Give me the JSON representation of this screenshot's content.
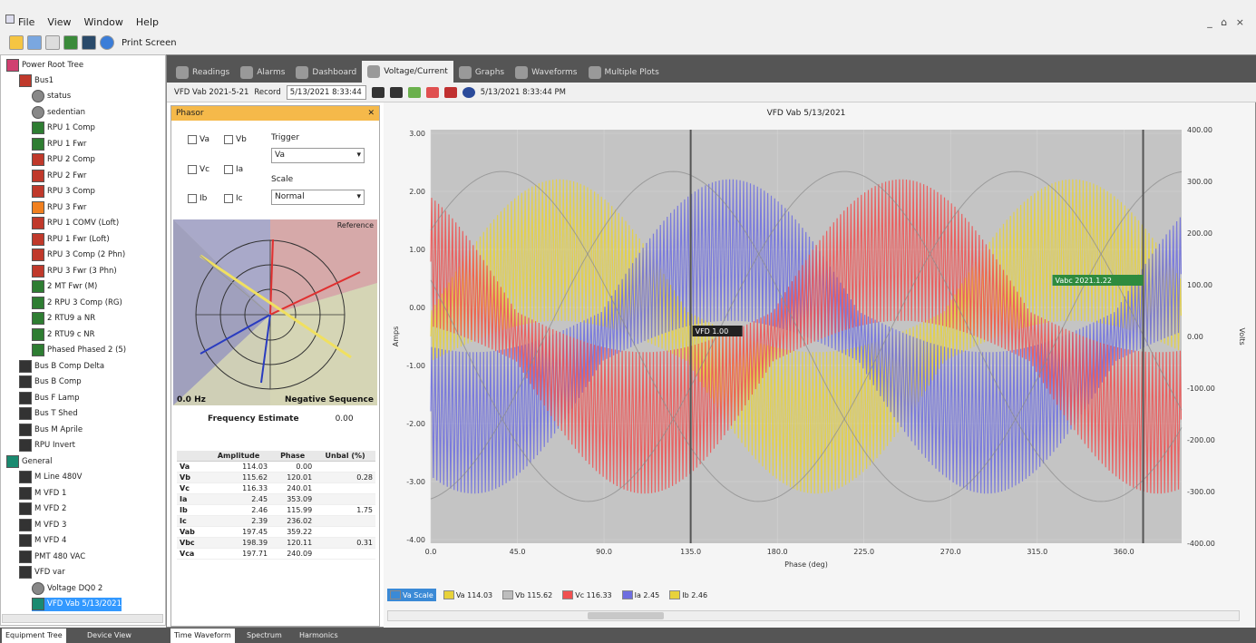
{
  "menu": [
    "File",
    "View",
    "Window",
    "Help"
  ],
  "window_controls": "_ ⌂ ×",
  "toolbar": {
    "print_label": "Print Screen"
  },
  "tree": {
    "root": "Power Root Tree",
    "items": [
      {
        "label": "Bus1",
        "icon": "red",
        "depth": 1
      },
      {
        "label": "status",
        "icon": "gray",
        "depth": 2
      },
      {
        "label": "sedentian",
        "icon": "gray",
        "depth": 2
      },
      {
        "label": "RPU 1 Comp",
        "icon": "green",
        "depth": 2
      },
      {
        "label": "RPU 1 Fwr",
        "icon": "green",
        "depth": 2
      },
      {
        "label": "RPU 2 Comp",
        "icon": "red",
        "depth": 2
      },
      {
        "label": "RPU 2 Fwr",
        "icon": "red",
        "depth": 2
      },
      {
        "label": "RPU 3 Comp",
        "icon": "red",
        "depth": 2
      },
      {
        "label": "RPU 3 Fwr",
        "icon": "orange",
        "depth": 2
      },
      {
        "label": "RPU 1 COMV (Loft)",
        "icon": "red",
        "depth": 2
      },
      {
        "label": "RPU 1 Fwr (Loft)",
        "icon": "red",
        "depth": 2
      },
      {
        "label": "RPU 3 Comp (2 Phn)",
        "icon": "red",
        "depth": 2
      },
      {
        "label": "RPU 3 Fwr (3 Phn)",
        "icon": "red",
        "depth": 2
      },
      {
        "label": "2 MT Fwr (M)",
        "icon": "green",
        "depth": 2
      },
      {
        "label": "2 RPU 3 Comp (RG)",
        "icon": "green",
        "depth": 2
      },
      {
        "label": "2 RTU9 a NR",
        "icon": "green",
        "depth": 2
      },
      {
        "label": "2 RTU9 c NR",
        "icon": "green",
        "depth": 2
      },
      {
        "label": "Phased Phased 2 (5)",
        "icon": "green",
        "depth": 2
      },
      {
        "label": "Bus B Comp Delta",
        "icon": "dark",
        "depth": 1
      },
      {
        "label": "Bus B Comp",
        "icon": "dark",
        "depth": 1
      },
      {
        "label": "Bus F Lamp",
        "icon": "dark",
        "depth": 1
      },
      {
        "label": "Bus T Shed",
        "icon": "dark",
        "depth": 1
      },
      {
        "label": "Bus M Aprile",
        "icon": "dark",
        "depth": 1
      },
      {
        "label": "RPU Invert",
        "icon": "dark",
        "depth": 1
      },
      {
        "label": "General",
        "icon": "teal",
        "depth": 0
      },
      {
        "label": "M Line 480V",
        "icon": "dark",
        "depth": 1
      },
      {
        "label": "M VFD 1",
        "icon": "dark",
        "depth": 1
      },
      {
        "label": "M VFD 2",
        "icon": "dark",
        "depth": 1
      },
      {
        "label": "M VFD 3",
        "icon": "dark",
        "depth": 1
      },
      {
        "label": "M VFD 4",
        "icon": "dark",
        "depth": 1
      },
      {
        "label": "PMT 480 VAC",
        "icon": "dark",
        "depth": 1
      },
      {
        "label": "VFD var",
        "icon": "dark",
        "depth": 1
      },
      {
        "label": "Voltage DQ0 2",
        "icon": "gray",
        "depth": 2
      },
      {
        "label": "VFD Vab 5/13/2021",
        "icon": "teal",
        "depth": 2,
        "selected": true
      }
    ]
  },
  "bottom_tabs": [
    "Equipment Tree",
    "Device View",
    "Time Waveform",
    "Spectrum",
    "Harmonics"
  ],
  "doc_tabs": [
    "Readings",
    "Alarms",
    "Dashboard",
    "Voltage/Current",
    "Graphs",
    "Waveforms",
    "Multiple Plots"
  ],
  "active_doc_tab": 3,
  "subbar": {
    "source": "VFD Vab 2021-5-21",
    "label": "Record",
    "combo": "5/13/2021 8:33:44",
    "timestamp": "5/13/2021 8:33:44 PM"
  },
  "phasor_panel": {
    "title": "Phasor",
    "checks": [
      "Va",
      "Vb",
      "Vc",
      "Ia",
      "Ib",
      "Ic"
    ],
    "trigger_label": "Trigger",
    "trigger_value": "Va",
    "scale_label": "Scale",
    "scale_value": "Normal",
    "corner_tr": "Reference",
    "corner_bl": "0.0 Hz",
    "corner_br": "Negative Sequence",
    "freq_label": "Frequency Estimate",
    "freq_value": "0.00",
    "table": {
      "headers": [
        "",
        "Amplitude",
        "Phase",
        "Unbal (%)"
      ],
      "rows": [
        [
          "Va",
          "114.03",
          "0.00",
          ""
        ],
        [
          "Vb",
          "115.62",
          "120.01",
          "0.28"
        ],
        [
          "Vc",
          "116.33",
          "240.01",
          ""
        ],
        [
          "Ia",
          "2.45",
          "353.09",
          ""
        ],
        [
          "Ib",
          "2.46",
          "115.99",
          "1.75"
        ],
        [
          "Ic",
          "2.39",
          "236.02",
          ""
        ],
        [
          "Vab",
          "197.45",
          "359.22",
          ""
        ],
        [
          "Vbc",
          "198.39",
          "120.11",
          "0.31"
        ],
        [
          "Vca",
          "197.71",
          "240.09",
          ""
        ]
      ]
    }
  },
  "chart_data": {
    "type": "line",
    "title": "VFD Vab 5/13/2021",
    "xlabel": "Phase (deg)",
    "ylabel_left": "Amps",
    "ylabel_right": "Volts",
    "xlim": [
      0,
      390
    ],
    "x_ticks": [
      "0.0",
      "45.0",
      "90.0",
      "135.0",
      "180.0",
      "225.0",
      "270.0",
      "315.0",
      "360.0"
    ],
    "y_left_ticks": [
      "3.00",
      "2.00",
      "1.00",
      "0.00",
      "-1.00",
      "-2.00",
      "-3.00",
      "-4.00"
    ],
    "y_right_ticks": [
      "400.00",
      "300.00",
      "200.00",
      "100.00",
      "0.00",
      "-100.00",
      "-200.00",
      "-300.00",
      "-400.00"
    ],
    "cursors": [
      {
        "x": 135,
        "label": "VFD 1.00"
      },
      {
        "x": 370,
        "label": "Vabc 2021.1.22"
      }
    ],
    "series": [
      {
        "name": "Va",
        "color": "#e8d23a"
      },
      {
        "name": "Vb",
        "color": "#6d6de0"
      },
      {
        "name": "Vc",
        "color": "#f05050"
      },
      {
        "name": "Ia",
        "color": "#9a9a9a"
      }
    ],
    "legend": [
      {
        "text": "Va Scale",
        "color": "#3b8ad6",
        "hl": true
      },
      {
        "text": "Va 114.03",
        "color": "#e8d23a"
      },
      {
        "text": "Vb 115.62",
        "color": "#bdbdbd"
      },
      {
        "text": "Vc 116.33",
        "color": "#f05050"
      },
      {
        "text": "Ia 2.45",
        "color": "#6d6de0"
      },
      {
        "text": "Ib 2.46",
        "color": "#e8d23a"
      }
    ]
  }
}
